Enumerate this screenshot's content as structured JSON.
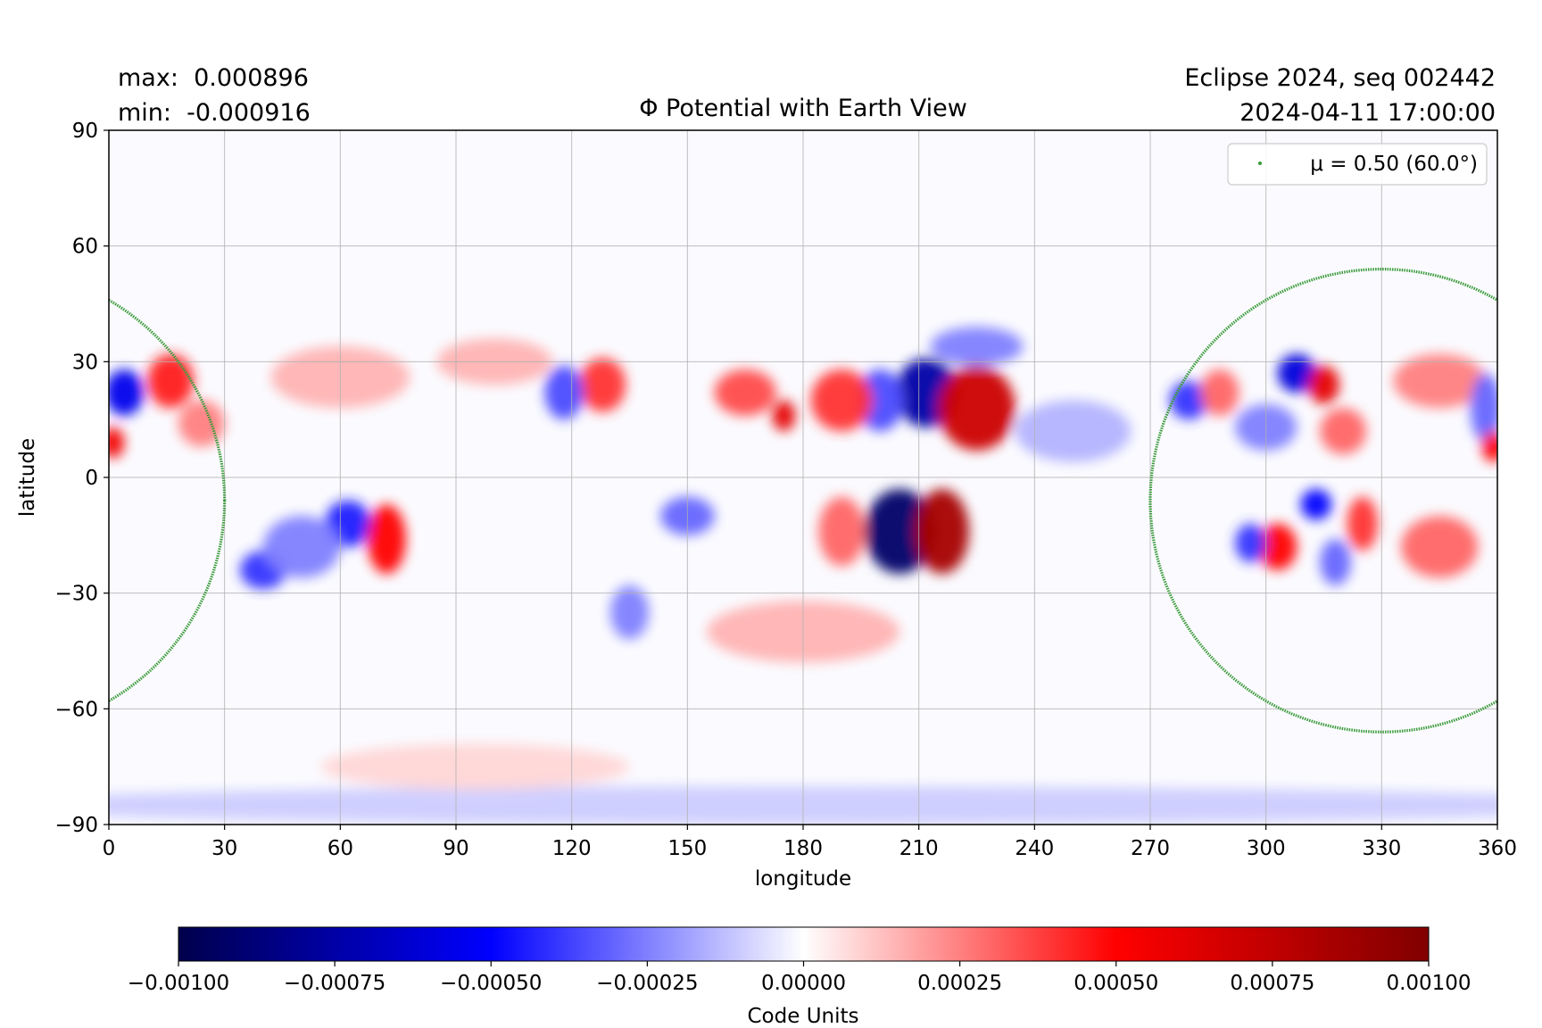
{
  "header": {
    "max_label": "max:  0.000896",
    "min_label": "min:  -0.000916",
    "title": "Φ Potential with Earth View",
    "run_label": "Eclipse 2024, seq 002442",
    "timestamp": "2024-04-11 17:00:00"
  },
  "chart_data": {
    "type": "heatmap",
    "title": "Φ Potential with Earth View",
    "xlabel": "longitude",
    "ylabel": "latitude",
    "xlim": [
      0,
      360
    ],
    "ylim": [
      -90,
      90
    ],
    "x_ticks": [
      0,
      30,
      60,
      90,
      120,
      150,
      180,
      210,
      240,
      270,
      300,
      330,
      360
    ],
    "y_ticks": [
      -90,
      -60,
      -30,
      0,
      30,
      60,
      90
    ],
    "y_tick_labels": [
      "−90",
      "−60",
      "−30",
      "0",
      "30",
      "60",
      "90"
    ],
    "x_tick_labels": [
      "0",
      "30",
      "60",
      "90",
      "120",
      "150",
      "180",
      "210",
      "240",
      "270",
      "300",
      "330",
      "360"
    ],
    "grid": true,
    "value_max": 0.000896,
    "value_min": -0.000916,
    "colormap": "seismic",
    "colormap_colors": [
      "#00004c",
      "#0000ff",
      "#ffffff",
      "#ff0000",
      "#800000"
    ],
    "features": [
      {
        "lon": 205,
        "lat": -14,
        "value": -0.00092,
        "rlon": 9,
        "rlat": 11
      },
      {
        "lon": 216,
        "lat": -14,
        "value": 0.00085,
        "rlon": 7,
        "rlat": 11
      },
      {
        "lon": 212,
        "lat": 22,
        "value": -0.00075,
        "rlon": 8,
        "rlat": 9
      },
      {
        "lon": 200,
        "lat": 20,
        "value": -0.00035,
        "rlon": 6,
        "rlat": 8
      },
      {
        "lon": 225,
        "lat": 18,
        "value": 0.0007,
        "rlon": 10,
        "rlat": 11
      },
      {
        "lon": 190,
        "lat": 20,
        "value": 0.0004,
        "rlon": 8,
        "rlat": 8
      },
      {
        "lon": 175,
        "lat": 16,
        "value": 0.0006,
        "rlon": 3,
        "rlat": 4
      },
      {
        "lon": 165,
        "lat": 22,
        "value": 0.00035,
        "rlon": 8,
        "rlat": 6
      },
      {
        "lon": 190,
        "lat": -14,
        "value": 0.0003,
        "rlon": 6,
        "rlat": 9
      },
      {
        "lon": 225,
        "lat": 34,
        "value": -0.00025,
        "rlon": 12,
        "rlat": 5
      },
      {
        "lon": 4,
        "lat": 22,
        "value": -0.00055,
        "rlon": 5,
        "rlat": 6
      },
      {
        "lon": 16,
        "lat": 25,
        "value": 0.00045,
        "rlon": 6,
        "rlat": 7
      },
      {
        "lon": 1,
        "lat": 9,
        "value": 0.00055,
        "rlon": 3,
        "rlat": 4
      },
      {
        "lon": 40,
        "lat": -24,
        "value": -0.0004,
        "rlon": 6,
        "rlat": 5
      },
      {
        "lon": 62,
        "lat": -12,
        "value": -0.00045,
        "rlon": 6,
        "rlat": 6
      },
      {
        "lon": 72,
        "lat": -16,
        "value": 0.0005,
        "rlon": 5,
        "rlat": 9
      },
      {
        "lon": 50,
        "lat": -18,
        "value": -0.00025,
        "rlon": 10,
        "rlat": 8
      },
      {
        "lon": 24,
        "lat": 14,
        "value": 0.00025,
        "rlon": 6,
        "rlat": 6
      },
      {
        "lon": 128,
        "lat": 24,
        "value": 0.0004,
        "rlon": 6,
        "rlat": 7
      },
      {
        "lon": 118,
        "lat": 22,
        "value": -0.00035,
        "rlon": 5,
        "rlat": 7
      },
      {
        "lon": 150,
        "lat": -10,
        "value": -0.0003,
        "rlon": 7,
        "rlat": 5
      },
      {
        "lon": 135,
        "lat": -35,
        "value": -0.00025,
        "rlon": 5,
        "rlat": 7
      },
      {
        "lon": 308,
        "lat": 27,
        "value": -0.0006,
        "rlon": 5,
        "rlat": 5
      },
      {
        "lon": 315,
        "lat": 24,
        "value": 0.0006,
        "rlon": 4,
        "rlat": 5
      },
      {
        "lon": 280,
        "lat": 20,
        "value": -0.0004,
        "rlon": 5,
        "rlat": 5
      },
      {
        "lon": 288,
        "lat": 22,
        "value": 0.0003,
        "rlon": 5,
        "rlat": 6
      },
      {
        "lon": 300,
        "lat": 13,
        "value": -0.00025,
        "rlon": 8,
        "rlat": 6
      },
      {
        "lon": 320,
        "lat": 12,
        "value": 0.0003,
        "rlon": 6,
        "rlat": 6
      },
      {
        "lon": 345,
        "lat": 25,
        "value": 0.00025,
        "rlon": 12,
        "rlat": 7
      },
      {
        "lon": 357,
        "lat": 18,
        "value": -0.0003,
        "rlon": 4,
        "rlat": 9
      },
      {
        "lon": 359,
        "lat": 8,
        "value": 0.0005,
        "rlon": 3,
        "rlat": 4
      },
      {
        "lon": 313,
        "lat": -7,
        "value": -0.0005,
        "rlon": 4,
        "rlat": 4
      },
      {
        "lon": 303,
        "lat": -18,
        "value": 0.0005,
        "rlon": 5,
        "rlat": 6
      },
      {
        "lon": 296,
        "lat": -17,
        "value": -0.0004,
        "rlon": 4,
        "rlat": 5
      },
      {
        "lon": 318,
        "lat": -22,
        "value": -0.0003,
        "rlon": 4,
        "rlat": 6
      },
      {
        "lon": 325,
        "lat": -12,
        "value": 0.0004,
        "rlon": 4,
        "rlat": 7
      },
      {
        "lon": 345,
        "lat": -18,
        "value": 0.0003,
        "rlon": 10,
        "rlat": 8
      },
      {
        "lon": 180,
        "lat": -40,
        "value": 0.00015,
        "rlon": 25,
        "rlat": 8
      },
      {
        "lon": 250,
        "lat": 12,
        "value": -0.00015,
        "rlon": 15,
        "rlat": 8
      },
      {
        "lon": 100,
        "lat": 30,
        "value": 0.00015,
        "rlon": 15,
        "rlat": 6
      },
      {
        "lon": 60,
        "lat": 26,
        "value": 0.00015,
        "rlon": 18,
        "rlat": 8
      },
      {
        "lon": 180,
        "lat": -85,
        "value": -0.0001,
        "rlon": 220,
        "rlat": 5
      },
      {
        "lon": 95,
        "lat": -75,
        "value": 8e-05,
        "rlon": 40,
        "rlat": 6
      }
    ],
    "legend": {
      "label": "μ = 0.50 (60.0°)",
      "placement": "top-right",
      "color": "#3a9a3a"
    },
    "earth_view_contour": {
      "name": "μ = 0.50 (60.0°)",
      "center_lon": 330,
      "center_lat": -6,
      "half_width_lon": 60,
      "half_height_lat": 60,
      "color": "#3a9a3a"
    },
    "colorbar": {
      "label": "Code Units",
      "range": [
        -0.001,
        0.001
      ],
      "ticks": [
        -0.001,
        -0.00075,
        -0.0005,
        -0.00025,
        0,
        0.00025,
        0.0005,
        0.00075,
        0.001
      ],
      "tick_labels": [
        "−0.00100",
        "−0.00075",
        "−0.00050",
        "−0.00025",
        "0.00000",
        "0.00025",
        "0.00050",
        "0.00075",
        "0.00100"
      ]
    }
  }
}
